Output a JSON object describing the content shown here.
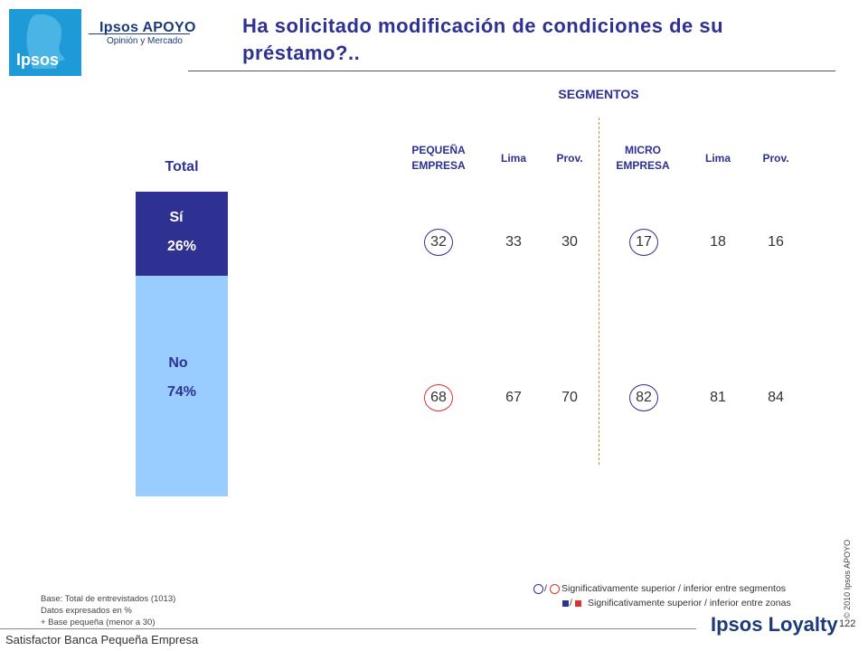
{
  "brand": {
    "logo_text": "Ipsos",
    "name": "Ipsos APOYO",
    "tagline": "Opinión y Mercado",
    "footer_logo": "Ipsos Loyalty"
  },
  "title": "Ha solicitado modificación de condiciones de su préstamo?..",
  "segments_label": "SEGMENTOS",
  "columns": [
    {
      "label": "PEQUEÑA EMPRESA"
    },
    {
      "label": "Lima"
    },
    {
      "label": "Prov."
    },
    {
      "label": "MICRO EMPRESA"
    },
    {
      "label": "Lima"
    },
    {
      "label": "Prov."
    }
  ],
  "total_label": "Total",
  "colors": {
    "si": "#2e3192",
    "no": "#99ccff",
    "circle_blue": "#2e3192",
    "circle_red": "#e03030",
    "divider": "#d08a3a"
  },
  "chart_data": {
    "type": "bar",
    "title": "Ha solicitado modificación de condiciones de su préstamo?..",
    "categories": [
      "Total"
    ],
    "series": [
      {
        "name": "Sí",
        "values": [
          26
        ],
        "label": "26%"
      },
      {
        "name": "No",
        "values": [
          74
        ],
        "label": "74%"
      }
    ],
    "stacked": true,
    "ylim": [
      0,
      100
    ]
  },
  "table": {
    "rows": [
      {
        "name": "Sí",
        "values": [
          "32",
          "33",
          "30",
          "17",
          "18",
          "16"
        ],
        "circles": [
          "blue",
          null,
          null,
          "blue",
          null,
          null
        ]
      },
      {
        "name": "No",
        "values": [
          "68",
          "67",
          "70",
          "82",
          "81",
          "84"
        ],
        "circles": [
          "red",
          null,
          null,
          "blue",
          null,
          null
        ]
      }
    ]
  },
  "footnotes": [
    "Base: Total de entrevistados (1013)",
    "Datos expresados en %",
    "+ Base pequeña (menor a 30)"
  ],
  "legend": [
    {
      "symbol": "circles",
      "sep": "/",
      "text": "Significativamente superior / inferior entre segmentos"
    },
    {
      "symbol": "squares",
      "sep": "/",
      "text": "Significativamente superior / inferior entre zonas"
    }
  ],
  "copyright": "© 2010 Ipsos APOYO",
  "page_number": "122",
  "footer_text": "Satisfactor Banca Pequeña Empresa"
}
